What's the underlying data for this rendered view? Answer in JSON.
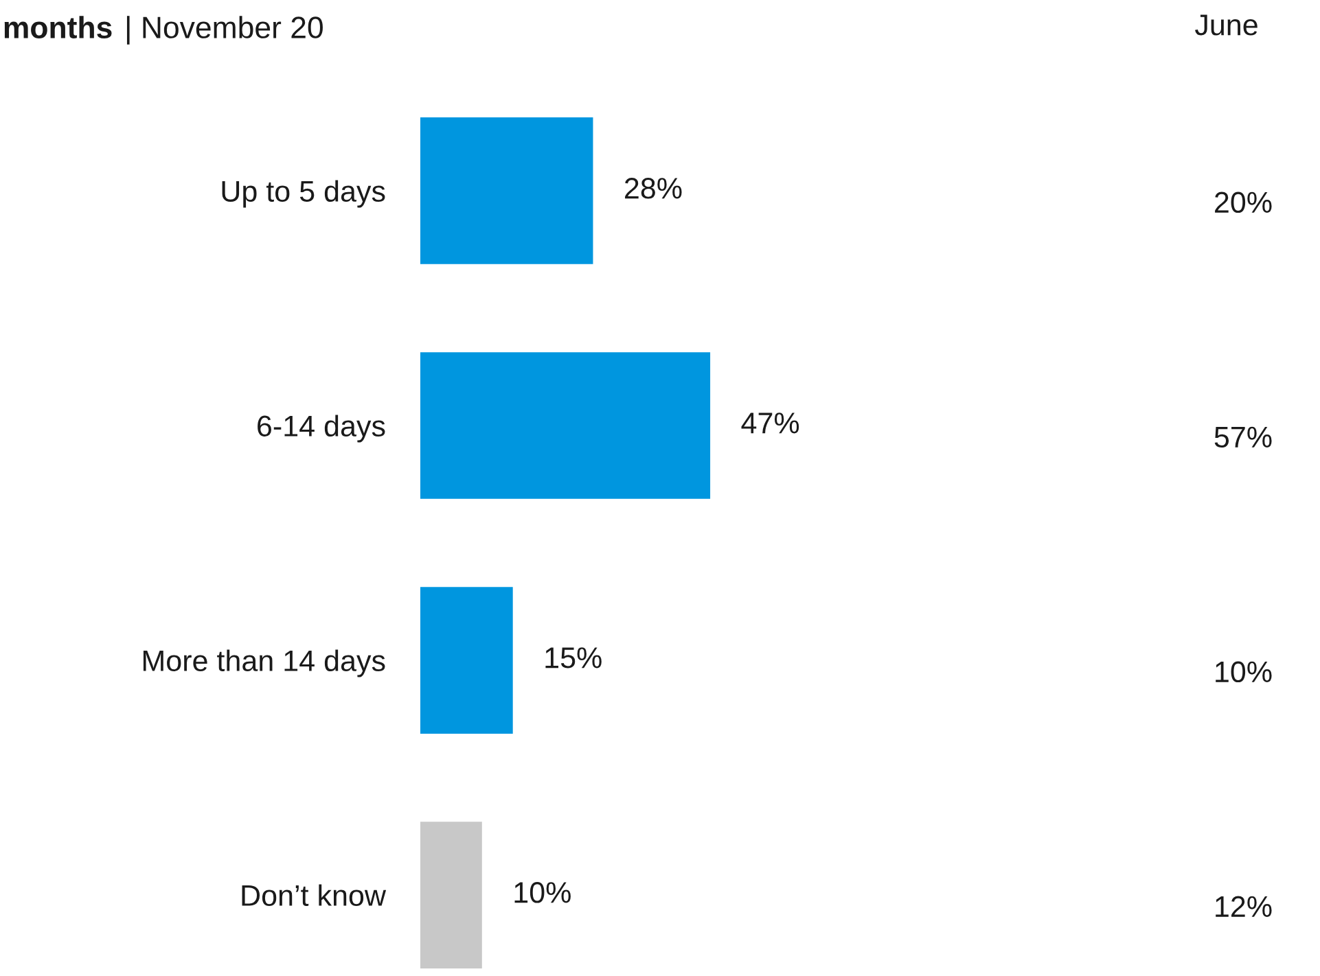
{
  "chart_data": {
    "type": "bar",
    "orientation": "horizontal",
    "title": "months",
    "subtitle": "| November 20",
    "categories": [
      "Up to 5 days",
      "6-14 days",
      "More than 14 days",
      "Don’t know"
    ],
    "values": [
      28,
      47,
      15,
      10
    ],
    "colors": [
      "#0096df",
      "#0096df",
      "#0096df",
      "#c8c8c8"
    ],
    "value_labels": [
      "28%",
      "47%",
      "15%",
      "10%"
    ],
    "annotations": [
      "June",
      "20%",
      "57%",
      "10%",
      "12%"
    ],
    "grid": false,
    "legend": false
  }
}
